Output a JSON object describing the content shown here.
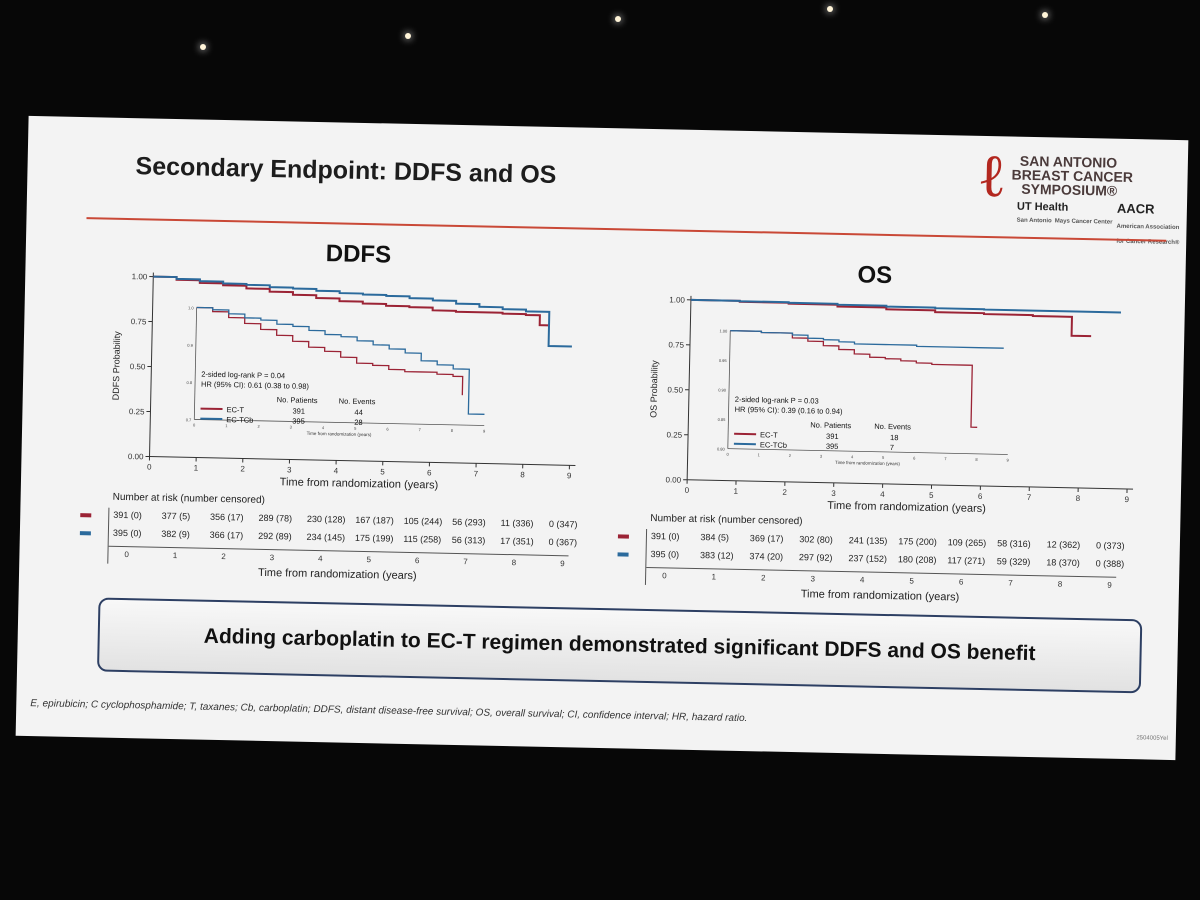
{
  "slide": {
    "title": "Secondary Endpoint: DDFS and OS",
    "banner": "Adding carboplatin to EC-T regimen demonstrated significant DDFS and OS benefit",
    "footnote": "E, epirubicin; C cyclophosphamide; T, taxanes; Cb, carboplatin; DDFS, distant disease-free survival; OS, overall survival; CI, confidence interval; HR, hazard ratio.",
    "slide_code": "2504005Yel"
  },
  "logo": {
    "line1": "SAN ANTONIO",
    "line2": "BREAST CANCER",
    "line3": "SYMPOSIUM®",
    "ut": "UT Health",
    "ut_sub1": "San Antonio",
    "ut_sub2": "Mays Cancer Center",
    "aacr": "AACR",
    "aacr_sub1": "American Association",
    "aacr_sub2": "for Cancer Research®"
  },
  "colors": {
    "ect": "#9b2335",
    "ectcb": "#2b6a9c",
    "accent": "#c94836"
  },
  "chart_data": [
    {
      "type": "line",
      "title": "DDFS",
      "xlabel": "Time from randomization (years)",
      "ylabel": "DDFS Probability",
      "xlim": [
        0,
        9
      ],
      "ylim": [
        0,
        1
      ],
      "x_ticks": [
        "0",
        "1",
        "2",
        "3",
        "4",
        "5",
        "6",
        "7",
        "8",
        "9"
      ],
      "y_ticks": [
        "0.00",
        "0.25",
        "0.50",
        "0.75",
        "1.00"
      ],
      "series": [
        {
          "name": "EC-T",
          "x": [
            0,
            0.5,
            1,
            1.5,
            2,
            2.5,
            3,
            3.5,
            4,
            4.5,
            5,
            5.5,
            6,
            6.5,
            7,
            7.5,
            8,
            8.3,
            8.5
          ],
          "y": [
            1,
            0.985,
            0.97,
            0.96,
            0.945,
            0.93,
            0.915,
            0.9,
            0.885,
            0.875,
            0.865,
            0.86,
            0.845,
            0.84,
            0.84,
            0.835,
            0.83,
            0.775,
            0.775
          ]
        },
        {
          "name": "EC-TCb",
          "x": [
            0,
            0.5,
            1,
            1.5,
            2,
            2.5,
            3,
            3.5,
            4,
            4.5,
            5,
            5.5,
            6,
            6.5,
            7,
            7.5,
            8,
            8.4,
            8.5,
            9
          ],
          "y": [
            1,
            0.99,
            0.98,
            0.97,
            0.965,
            0.955,
            0.95,
            0.94,
            0.93,
            0.925,
            0.92,
            0.91,
            0.9,
            0.885,
            0.87,
            0.86,
            0.85,
            0.85,
            0.66,
            0.66
          ]
        }
      ],
      "inset": {
        "ylim": [
          0.7,
          1.0
        ],
        "y_ticks": [
          "1.0",
          "0.9",
          "0.8",
          "0.7"
        ],
        "xlabel": "Time from randomization (years)",
        "x_ticks": [
          "0",
          "1",
          "2",
          "3",
          "4",
          "5",
          "6",
          "7",
          "8",
          "9"
        ],
        "ect": {
          "x": [
            0,
            0.5,
            1,
            1.5,
            2,
            2.5,
            3,
            3.5,
            4,
            4.5,
            5,
            5.5,
            6,
            6.5,
            7,
            7.5,
            8,
            8.3
          ],
          "y": [
            1,
            0.99,
            0.975,
            0.96,
            0.945,
            0.93,
            0.915,
            0.9,
            0.89,
            0.875,
            0.86,
            0.855,
            0.845,
            0.84,
            0.84,
            0.835,
            0.83,
            0.78
          ]
        },
        "ectcb": {
          "x": [
            0,
            0.5,
            1,
            1.5,
            2,
            2.5,
            3,
            3.5,
            4,
            4.5,
            5,
            5.5,
            6,
            6.5,
            7,
            7.5,
            8,
            8.3,
            8.5,
            9
          ],
          "y": [
            1,
            0.995,
            0.985,
            0.975,
            0.97,
            0.96,
            0.955,
            0.945,
            0.935,
            0.93,
            0.92,
            0.91,
            0.9,
            0.89,
            0.87,
            0.86,
            0.85,
            0.85,
            0.73,
            0.73
          ]
        }
      },
      "stats": {
        "logrank": "2-sided log-rank P = 0.04",
        "hr": "HR (95% CI): 0.61 (0.38 to 0.98)",
        "col_patients": "No. Patients",
        "col_events": "No. Events",
        "rows": [
          {
            "arm": "EC-T",
            "patients": "391",
            "events": "44"
          },
          {
            "arm": "EC-TCb",
            "patients": "395",
            "events": "28"
          }
        ]
      },
      "risk_table": {
        "title": "Number at risk (number censored)",
        "xlabel": "Time from randomization (years)",
        "ticks": [
          "0",
          "1",
          "2",
          "3",
          "4",
          "5",
          "6",
          "7",
          "8",
          "9"
        ],
        "ect": [
          "391 (0)",
          "377 (5)",
          "356 (17)",
          "289 (78)",
          "230 (128)",
          "167 (187)",
          "105 (244)",
          "56 (293)",
          "11 (336)",
          "0 (347)"
        ],
        "ectcb": [
          "395 (0)",
          "382 (9)",
          "366 (17)",
          "292 (89)",
          "234 (145)",
          "175 (199)",
          "115 (258)",
          "56 (313)",
          "17 (351)",
          "0 (367)"
        ]
      }
    },
    {
      "type": "line",
      "title": "OS",
      "xlabel": "Time from randomization (years)",
      "ylabel": "OS Probability",
      "xlim": [
        0,
        9
      ],
      "ylim": [
        0,
        1
      ],
      "x_ticks": [
        "0",
        "1",
        "2",
        "3",
        "4",
        "5",
        "6",
        "7",
        "8",
        "9"
      ],
      "y_ticks": [
        "0.00",
        "0.25",
        "0.50",
        "0.75",
        "1.00"
      ],
      "series": [
        {
          "name": "EC-T",
          "x": [
            0,
            1,
            2,
            3,
            4,
            5,
            6,
            7,
            7.5,
            7.7,
            7.8,
            8.2
          ],
          "y": [
            1,
            0.995,
            0.99,
            0.98,
            0.97,
            0.96,
            0.955,
            0.95,
            0.95,
            0.95,
            0.845,
            0.845
          ]
        },
        {
          "name": "EC-TCb",
          "x": [
            0,
            1,
            2,
            3,
            4,
            5,
            6,
            7,
            8,
            8.8
          ],
          "y": [
            1,
            0.998,
            0.995,
            0.99,
            0.985,
            0.982,
            0.98,
            0.98,
            0.98,
            0.98
          ]
        }
      ],
      "inset": {
        "ylim": [
          0.8,
          1.0
        ],
        "y_ticks": [
          "1.00",
          "0.95",
          "0.90",
          "0.85",
          "0.80"
        ],
        "xlabel": "Time from randomization (years)",
        "x_ticks": [
          "0",
          "1",
          "2",
          "3",
          "4",
          "5",
          "6",
          "7",
          "8",
          "9"
        ],
        "ect": {
          "x": [
            0,
            1,
            2,
            2.5,
            3,
            3.5,
            4,
            4.5,
            5,
            5.5,
            6,
            6.5,
            7,
            7.5,
            7.7,
            7.8,
            8
          ],
          "y": [
            1,
            0.998,
            0.99,
            0.985,
            0.978,
            0.972,
            0.965,
            0.96,
            0.958,
            0.955,
            0.952,
            0.95,
            0.95,
            0.95,
            0.95,
            0.845,
            0.845
          ]
        },
        "ectcb": {
          "x": [
            0,
            1,
            2,
            2.5,
            3,
            3.5,
            4,
            5,
            6,
            7,
            8,
            8.8
          ],
          "y": [
            1,
            0.998,
            0.995,
            0.99,
            0.988,
            0.985,
            0.982,
            0.982,
            0.98,
            0.98,
            0.98,
            0.98
          ]
        }
      },
      "stats": {
        "logrank": "2-sided log-rank P = 0.03",
        "hr": "HR (95% CI): 0.39 (0.16 to 0.94)",
        "col_patients": "No. Patients",
        "col_events": "No. Events",
        "rows": [
          {
            "arm": "EC-T",
            "patients": "391",
            "events": "18"
          },
          {
            "arm": "EC-TCb",
            "patients": "395",
            "events": "7"
          }
        ]
      },
      "risk_table": {
        "title": "Number at risk (number censored)",
        "xlabel": "Time from randomization (years)",
        "ticks": [
          "0",
          "1",
          "2",
          "3",
          "4",
          "5",
          "6",
          "7",
          "8",
          "9"
        ],
        "ect": [
          "391 (0)",
          "384 (5)",
          "369 (17)",
          "302 (80)",
          "241 (135)",
          "175 (200)",
          "109 (265)",
          "58 (316)",
          "12 (362)",
          "0 (373)"
        ],
        "ectcb": [
          "395 (0)",
          "383 (12)",
          "374 (20)",
          "297 (92)",
          "237 (152)",
          "180 (208)",
          "117 (271)",
          "59 (329)",
          "18 (370)",
          "0 (388)"
        ]
      }
    }
  ]
}
